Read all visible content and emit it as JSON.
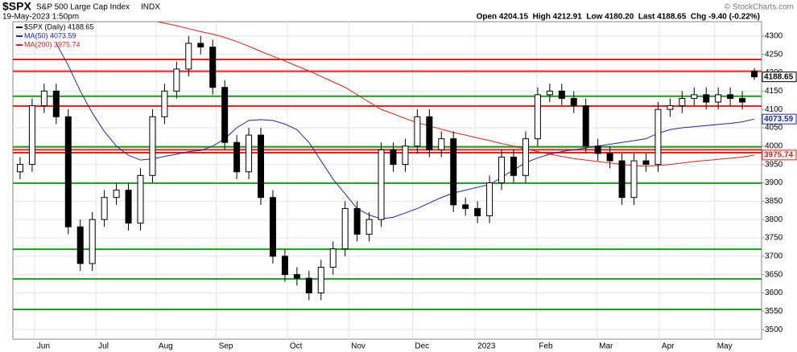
{
  "chart_data": {
    "type": "candlestick",
    "symbol": "$SPX",
    "title": "S&P 500 Large Cap Index",
    "exchange": "INDX",
    "date": "19-May-2023 1:50pm",
    "quote": "Open 4204.15  High 4212.91  Low 4180.20  Last 4188.65  Chg -9.40 (-0.22%)",
    "credit": "© StockCharts.com",
    "legend": [
      "$SPX (Daily) 4188.65",
      "MA(50) 4073.59",
      "MA(200) 3975.74"
    ],
    "up_color": "#000000",
    "down_color": "#000000",
    "open": [
      3930,
      3950,
      4110,
      4150,
      4080,
      3780,
      3680,
      3800,
      3860,
      3880,
      3790,
      3920,
      4080,
      4150,
      4210,
      4280,
      4270,
      4160,
      4010,
      3930,
      4030,
      3860,
      3700,
      3650,
      3640,
      3600,
      3670,
      3720,
      3830,
      3760,
      3800,
      3990,
      3950,
      4000,
      4080,
      3990,
      4020,
      3840,
      3830,
      3810,
      3900,
      3970,
      3920,
      4020,
      4140,
      4150,
      4130,
      4110,
      4000,
      3980,
      3960,
      3860,
      3960,
      3950,
      4100,
      4110,
      4130,
      4140,
      4120,
      4140,
      4130,
      4204.15
    ],
    "high": [
      3970,
      4130,
      4170,
      4170,
      4100,
      3800,
      3820,
      3880,
      3900,
      3900,
      3940,
      4100,
      4170,
      4230,
      4300,
      4300,
      4290,
      4180,
      4030,
      4050,
      4050,
      3880,
      3720,
      3670,
      3660,
      3690,
      3740,
      3850,
      3850,
      3820,
      4010,
      4010,
      4020,
      4100,
      4100,
      4040,
      4040,
      3860,
      3850,
      3920,
      3990,
      3990,
      4040,
      4160,
      4170,
      4170,
      4150,
      4130,
      4020,
      4000,
      3980,
      3980,
      3980,
      4120,
      4130,
      4150,
      4160,
      4160,
      4160,
      4160,
      4150,
      4212.91
    ],
    "low": [
      3910,
      3930,
      4090,
      4060,
      3760,
      3660,
      3660,
      3780,
      3840,
      3770,
      3770,
      3900,
      4060,
      4130,
      4190,
      4250,
      4140,
      3990,
      3910,
      3910,
      3840,
      3680,
      3630,
      3620,
      3580,
      3580,
      3650,
      3700,
      3740,
      3740,
      3780,
      3930,
      3930,
      3980,
      3970,
      3970,
      3820,
      3810,
      3790,
      3790,
      3880,
      3900,
      3900,
      4000,
      4120,
      4110,
      4090,
      3980,
      3960,
      3940,
      3840,
      3840,
      3930,
      3930,
      4080,
      4090,
      4110,
      4100,
      4100,
      4110,
      4100,
      4180.2
    ],
    "close": [
      3950,
      4110,
      4150,
      4080,
      3780,
      3680,
      3800,
      3860,
      3880,
      3790,
      3920,
      4080,
      4150,
      4210,
      4280,
      4270,
      4160,
      4010,
      3930,
      4030,
      3860,
      3700,
      3650,
      3640,
      3600,
      3670,
      3720,
      3830,
      3760,
      3800,
      3990,
      3950,
      4000,
      4080,
      3990,
      4020,
      3840,
      3830,
      3810,
      3900,
      3970,
      3920,
      4020,
      4140,
      4150,
      4130,
      4110,
      4000,
      3980,
      3960,
      3860,
      3960,
      3950,
      4100,
      4110,
      4130,
      4140,
      4120,
      4140,
      4130,
      4120,
      4188.65
    ],
    "series": [
      {
        "name": "MA(50)",
        "color": "#1f2a9c",
        "values": [
          null,
          null,
          null,
          4280,
          4220,
          4150,
          4090,
          4040,
          4000,
          3975,
          3962,
          3965,
          3972,
          3978,
          3985,
          3988,
          4000,
          4020,
          4050,
          4070,
          4072,
          4070,
          4060,
          4045,
          4010,
          3960,
          3910,
          3870,
          3830,
          3812,
          3802,
          3806,
          3818,
          3830,
          3845,
          3860,
          3872,
          3880,
          3888,
          3895,
          3915,
          3935,
          3955,
          3968,
          3978,
          3985,
          3990,
          3995,
          4000,
          4005,
          4010,
          4015,
          4020,
          4035,
          4045,
          4050,
          4053,
          4056,
          4059,
          4062,
          4066,
          4073.59
        ]
      },
      {
        "name": "MA(200)",
        "color": "#d0231b",
        "values": [
          null,
          null,
          null,
          null,
          null,
          null,
          null,
          null,
          null,
          null,
          4350,
          4342,
          4335,
          4328,
          4320,
          4312,
          4305,
          4296,
          4285,
          4272,
          4258,
          4245,
          4232,
          4218,
          4205,
          4190,
          4175,
          4160,
          4140,
          4120,
          4100,
          4088,
          4075,
          4064,
          4055,
          4046,
          4037,
          4030,
          4022,
          4015,
          4007,
          4000,
          3992,
          3985,
          3978,
          3972,
          3966,
          3962,
          3958,
          3954,
          3950,
          3947,
          3945,
          3947,
          3950,
          3954,
          3958,
          3961,
          3964,
          3967,
          3970,
          3975.74
        ]
      }
    ],
    "hlines": [
      {
        "value": 4236,
        "color": "#e8201a"
      },
      {
        "value": 4204,
        "color": "#e8201a"
      },
      {
        "value": 4136,
        "color": "#1d9a1d"
      },
      {
        "value": 4109,
        "color": "#e8201a"
      },
      {
        "value": 3998,
        "color": "#1d9a1d"
      },
      {
        "value": 3990,
        "color": "#e8201a"
      },
      {
        "value": 3982,
        "color": "#e8201a"
      },
      {
        "value": 3899,
        "color": "#1d9a1d"
      },
      {
        "value": 3719,
        "color": "#1d9a1d"
      },
      {
        "value": 3638,
        "color": "#1d9a1d"
      },
      {
        "value": 3555,
        "color": "#1d9a1d"
      }
    ],
    "ylim": [
      3474,
      4339
    ],
    "yticks": [
      3500,
      3550,
      3600,
      3650,
      3700,
      3750,
      3800,
      3850,
      3900,
      3950,
      4000,
      4050,
      4100,
      4150,
      4200,
      4250,
      4300
    ],
    "xlim": [
      -0.6,
      61.6
    ],
    "xticks": [
      {
        "value": 1.2,
        "label": "Jun"
      },
      {
        "value": 6.3,
        "label": "Jul"
      },
      {
        "value": 11.3,
        "label": "Aug"
      },
      {
        "value": 16.3,
        "label": "Sep"
      },
      {
        "value": 22.2,
        "label": "Oct"
      },
      {
        "value": 27.3,
        "label": "Nov"
      },
      {
        "value": 32.6,
        "label": "Dec"
      },
      {
        "value": 37.8,
        "label": "2023"
      },
      {
        "value": 42.9,
        "label": "Feb"
      },
      {
        "value": 47.9,
        "label": "Mar"
      },
      {
        "value": 53.1,
        "label": "Apr"
      },
      {
        "value": 57.7,
        "label": "May"
      }
    ],
    "grid": true
  }
}
